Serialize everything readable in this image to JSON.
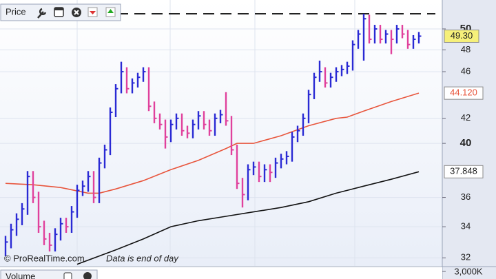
{
  "chart_data": {
    "type": "hlc",
    "title": "Price",
    "log_scale": true,
    "grid": true,
    "ylim": [
      31.5,
      52.9
    ],
    "yticks": [
      32,
      34,
      36,
      40,
      42,
      46,
      48,
      50
    ],
    "reference_line": 51.5,
    "price": {
      "up_color": "#2a2ad4",
      "down_color": "#e0409c",
      "high": [
        33.4,
        34.2,
        34.9,
        35.6,
        37.9,
        37.9,
        36.4,
        34.4,
        33.6,
        33.9,
        34.6,
        34.6,
        35.4,
        36.9,
        37.2,
        37.9,
        37.9,
        38.9,
        39.9,
        42.9,
        44.9,
        46.9,
        46.4,
        45.4,
        45.9,
        46.4,
        46.4,
        43.4,
        42.4,
        41.9,
        41.9,
        42.4,
        42.4,
        41.4,
        41.9,
        42.6,
        42.6,
        41.9,
        42.4,
        42.7,
        44.2,
        42.2,
        39.9,
        37.4,
        38.4,
        38.6,
        38.6,
        38.4,
        38.4,
        38.9,
        39.2,
        39.4,
        40.9,
        41.4,
        42.4,
        44.4,
        45.9,
        47.0,
        46.4,
        45.9,
        46.4,
        46.6,
        46.9,
        48.9,
        49.9,
        51.5,
        51.4,
        50.4,
        50.4,
        49.9,
        49.9,
        50.4,
        50.4,
        49.9,
        49.4,
        49.7
      ],
      "low": [
        32.1,
        32.6,
        33.4,
        34.1,
        34.8,
        35.6,
        33.6,
        32.8,
        32.4,
        32.4,
        33.1,
        33.6,
        33.6,
        34.6,
        36.1,
        36.4,
        35.6,
        35.6,
        38.1,
        39.1,
        42.1,
        44.1,
        44.1,
        44.1,
        44.6,
        45.1,
        42.6,
        41.6,
        41.1,
        39.6,
        40.1,
        41.1,
        40.6,
        40.4,
        40.4,
        41.1,
        41.1,
        40.6,
        40.6,
        41.6,
        41.4,
        39.1,
        36.6,
        35.3,
        35.8,
        37.6,
        37.1,
        37.1,
        37.1,
        37.4,
        38.1,
        38.4,
        38.6,
        40.1,
        40.6,
        41.6,
        43.6,
        45.1,
        44.6,
        44.6,
        45.1,
        45.6,
        45.8,
        46.1,
        48.1,
        47.0,
        48.6,
        48.6,
        48.6,
        48.6,
        47.6,
        48.6,
        49.1,
        48.1,
        48.1,
        48.6
      ],
      "close": [
        33.0,
        33.8,
        34.5,
        35.2,
        37.5,
        36.0,
        34.0,
        33.2,
        32.8,
        33.5,
        34.2,
        34.0,
        35.0,
        36.5,
        36.8,
        37.5,
        36.0,
        38.5,
        39.5,
        42.5,
        44.5,
        46.0,
        44.5,
        45.0,
        45.5,
        46.0,
        43.0,
        42.0,
        41.5,
        40.5,
        41.5,
        42.0,
        41.0,
        40.8,
        41.5,
        42.2,
        41.5,
        41.0,
        42.0,
        42.3,
        41.8,
        39.5,
        37.0,
        36.2,
        38.0,
        38.2,
        37.5,
        38.0,
        37.8,
        38.5,
        38.8,
        39.0,
        40.5,
        41.0,
        42.0,
        44.0,
        45.5,
        46.0,
        45.0,
        45.5,
        46.0,
        46.2,
        46.5,
        48.5,
        49.5,
        51.0,
        49.0,
        50.0,
        49.0,
        49.5,
        49.0,
        50.0,
        49.5,
        48.5,
        49.0,
        49.3
      ],
      "last": {
        "value": 49.3,
        "label": "49.30"
      }
    },
    "lines": [
      {
        "color": "#e8553c",
        "x": [
          0,
          5,
          10,
          15,
          17,
          20,
          25,
          30,
          35,
          40,
          42,
          45,
          50,
          55,
          60,
          62,
          65,
          70,
          75
        ],
        "values": [
          37.0,
          36.9,
          36.7,
          36.3,
          36.3,
          36.6,
          37.2,
          38.0,
          38.7,
          39.6,
          40.0,
          40.0,
          40.6,
          41.4,
          42.0,
          42.1,
          42.6,
          43.4,
          44.12
        ],
        "last": {
          "value": 44.12,
          "label": "44.120"
        }
      },
      {
        "color": "#111111",
        "x": [
          13,
          20,
          25,
          30,
          35,
          40,
          45,
          50,
          55,
          60,
          65,
          70,
          75
        ],
        "values": [
          31.6,
          32.5,
          33.2,
          34.0,
          34.4,
          34.7,
          35.0,
          35.3,
          35.7,
          36.3,
          36.8,
          37.3,
          37.848
        ],
        "last": {
          "value": 37.848,
          "label": "37.848"
        }
      }
    ],
    "watermark": "© ProRealTime.com",
    "note": "Data is end of day",
    "volume": {
      "title": "Volume",
      "yticks": [
        {
          "value": 3000000,
          "label": "3,000K"
        }
      ]
    }
  }
}
